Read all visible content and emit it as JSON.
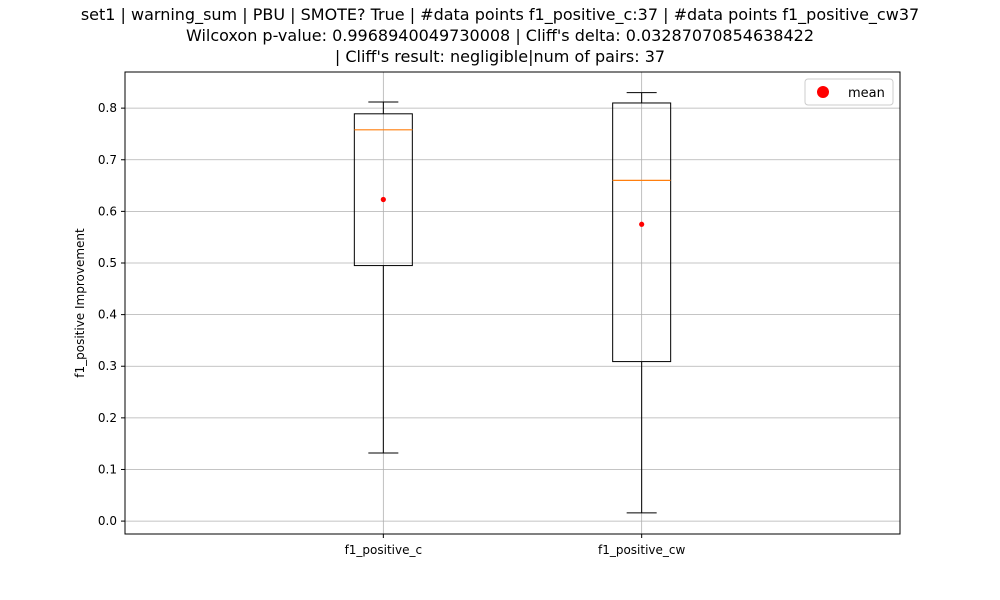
{
  "chart_data": {
    "type": "box",
    "title_lines": [
      "set1 | warning_sum | PBU | SMOTE? True | #data points f1_positive_c:37 | #data points f1_positive_cw37",
      "Wilcoxon p-value: 0.9968940049730008 | Cliff's delta: 0.03287070854638422",
      "| Cliff's result: negligible|num of pairs: 37"
    ],
    "ylabel": "f1_positive Improvement",
    "ylim": [
      -0.025,
      0.87
    ],
    "yticks": [
      "0.0",
      "0.1",
      "0.2",
      "0.3",
      "0.4",
      "0.5",
      "0.6",
      "0.7",
      "0.8"
    ],
    "grid": true,
    "legend": {
      "placement": "top-right",
      "entries": [
        {
          "label": "mean",
          "color": "#ff0000",
          "marker": "circle"
        }
      ]
    },
    "categories": [
      "f1_positive_c",
      "f1_positive_cw"
    ],
    "boxes": [
      {
        "category": "f1_positive_c",
        "whisker_low": 0.132,
        "q1": 0.495,
        "median": 0.758,
        "q3": 0.789,
        "whisker_high": 0.812,
        "mean": 0.623
      },
      {
        "category": "f1_positive_cw",
        "whisker_low": 0.016,
        "q1": 0.309,
        "median": 0.66,
        "q3": 0.81,
        "whisker_high": 0.83,
        "mean": 0.575
      }
    ],
    "colors": {
      "box": "#000000",
      "median": "#ff7f0e",
      "mean": "#ff0000",
      "grid": "#b0b0b0"
    }
  }
}
